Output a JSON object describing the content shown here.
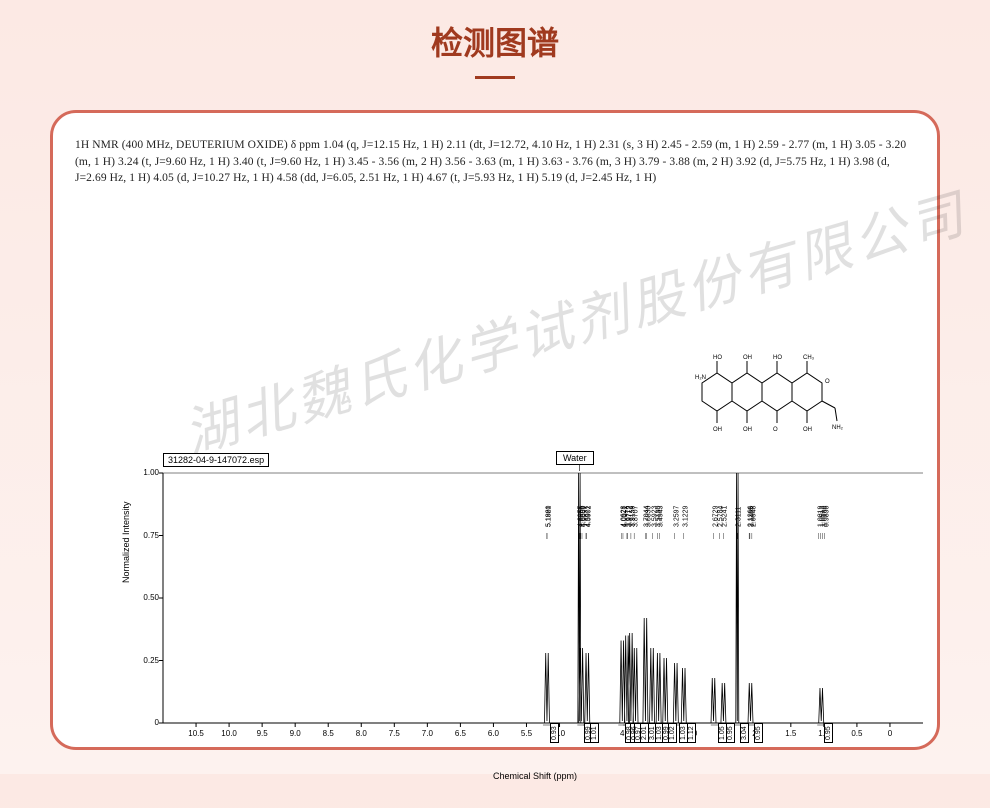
{
  "page": {
    "title": "检测图谱",
    "background_gradient": [
      "#fce9e4",
      "#fdf2ef"
    ],
    "title_color": "#a03a1f",
    "card_border_color": "#d56a5a"
  },
  "nmr_description": "1H NMR (400 MHz, DEUTERIUM OXIDE) δ ppm 1.04 (q, J=12.15 Hz, 1 H) 2.11 (dt, J=12.72, 4.10 Hz, 1 H) 2.31 (s, 3 H) 2.45 - 2.59 (m, 1 H) 2.59 - 2.77 (m, 1 H) 3.05 - 3.20 (m, 1 H) 3.24 (t, J=9.60 Hz, 1 H) 3.40 (t, J=9.60 Hz, 1 H) 3.45 - 3.56 (m, 2 H) 3.56 - 3.63 (m, 1 H) 3.63 - 3.76 (m, 3 H) 3.79 - 3.88 (m, 2 H) 3.92 (d, J=5.75 Hz, 1 H) 3.98 (d, J=2.69 Hz, 1 H) 4.05 (d, J=10.27 Hz, 1 H) 4.58 (dd, J=6.05, 2.51 Hz, 1 H) 4.67 (t, J=5.93 Hz, 1 H) 5.19 (d, J=2.45 Hz, 1 H)",
  "watermark": "湖北魏氏化学试剂股份有限公司",
  "chart": {
    "type": "nmr-spectrum",
    "filename": "31282-04-9-147072.esp",
    "annotation_label": "Water",
    "xlabel": "Chemical Shift (ppm)",
    "ylabel": "Normalized Intensity",
    "xlim": [
      11.0,
      -0.5
    ],
    "ylim": [
      0,
      1.05
    ],
    "yticks": [
      0,
      0.25,
      0.5,
      0.75,
      1.0
    ],
    "xticks": [
      10.5,
      10.0,
      9.5,
      9.0,
      8.5,
      8.0,
      7.5,
      7.0,
      6.5,
      6.0,
      5.5,
      5.0,
      4.5,
      4.0,
      3.5,
      3.0,
      2.5,
      2.0,
      1.5,
      1.0,
      0.5,
      0.0
    ],
    "xtick_fontsize": 8,
    "ytick_fontsize": 8,
    "label_fontsize": 9,
    "line_color": "#000000",
    "background_color": "#ffffff",
    "peak_top_labels": [
      "5.1921",
      "5.1860",
      "4.6955",
      "4.6806",
      "4.6559",
      "4.5971",
      "4.5902",
      "4.0628",
      "4.0371",
      "3.9779",
      "3.9712",
      "3.9159",
      "3.8707",
      "3.7044",
      "3.6830",
      "3.5923",
      "3.5180",
      "3.4943",
      "3.2597",
      "3.1229",
      "2.6729",
      "2.5784",
      "2.5241",
      "2.3111",
      "2.1266",
      "2.1165",
      "2.0948",
      "1.0819",
      "1.0513",
      "1.0198",
      "0.9896"
    ],
    "peak_positions_ppm": [
      5.19,
      5.19,
      4.7,
      4.68,
      4.66,
      4.6,
      4.59,
      4.06,
      4.04,
      3.98,
      3.97,
      3.92,
      3.87,
      3.7,
      3.68,
      3.59,
      3.52,
      3.49,
      3.26,
      3.12,
      2.67,
      2.58,
      2.52,
      2.31,
      2.13,
      2.12,
      2.09,
      1.08,
      1.05,
      1.02,
      0.99
    ],
    "integrals": [
      {
        "ppm": 5.19,
        "value": "0.93"
      },
      {
        "ppm": 4.67,
        "value": "0.99"
      },
      {
        "ppm": 4.58,
        "value": "1.01"
      },
      {
        "ppm": 4.05,
        "value": "0.98"
      },
      {
        "ppm": 3.98,
        "value": "0.96"
      },
      {
        "ppm": 3.92,
        "value": "0.97"
      },
      {
        "ppm": 3.83,
        "value": "2.01"
      },
      {
        "ppm": 3.7,
        "value": "3.01"
      },
      {
        "ppm": 3.6,
        "value": "1.03"
      },
      {
        "ppm": 3.5,
        "value": "0.99"
      },
      {
        "ppm": 3.4,
        "value": "1.02"
      },
      {
        "ppm": 3.24,
        "value": "1.03"
      },
      {
        "ppm": 3.12,
        "value": "1.12"
      },
      {
        "ppm": 2.65,
        "value": "1.05"
      },
      {
        "ppm": 2.52,
        "value": "0.95"
      },
      {
        "ppm": 2.31,
        "value": "3.04"
      },
      {
        "ppm": 2.11,
        "value": "0.95"
      },
      {
        "ppm": 1.04,
        "value": "0.95"
      }
    ],
    "nmr_peaks": [
      {
        "ppm": 5.19,
        "intensity": 0.28
      },
      {
        "ppm": 4.7,
        "intensity": 1.0
      },
      {
        "ppm": 4.67,
        "intensity": 0.3
      },
      {
        "ppm": 4.58,
        "intensity": 0.28
      },
      {
        "ppm": 4.05,
        "intensity": 0.33
      },
      {
        "ppm": 3.98,
        "intensity": 0.35
      },
      {
        "ppm": 3.92,
        "intensity": 0.36
      },
      {
        "ppm": 3.85,
        "intensity": 0.3
      },
      {
        "ppm": 3.7,
        "intensity": 0.42
      },
      {
        "ppm": 3.6,
        "intensity": 0.3
      },
      {
        "ppm": 3.5,
        "intensity": 0.28
      },
      {
        "ppm": 3.4,
        "intensity": 0.26
      },
      {
        "ppm": 3.24,
        "intensity": 0.24
      },
      {
        "ppm": 3.12,
        "intensity": 0.22
      },
      {
        "ppm": 2.67,
        "intensity": 0.18
      },
      {
        "ppm": 2.52,
        "intensity": 0.16
      },
      {
        "ppm": 2.31,
        "intensity": 1.0
      },
      {
        "ppm": 2.11,
        "intensity": 0.16
      },
      {
        "ppm": 1.04,
        "intensity": 0.14
      }
    ]
  }
}
